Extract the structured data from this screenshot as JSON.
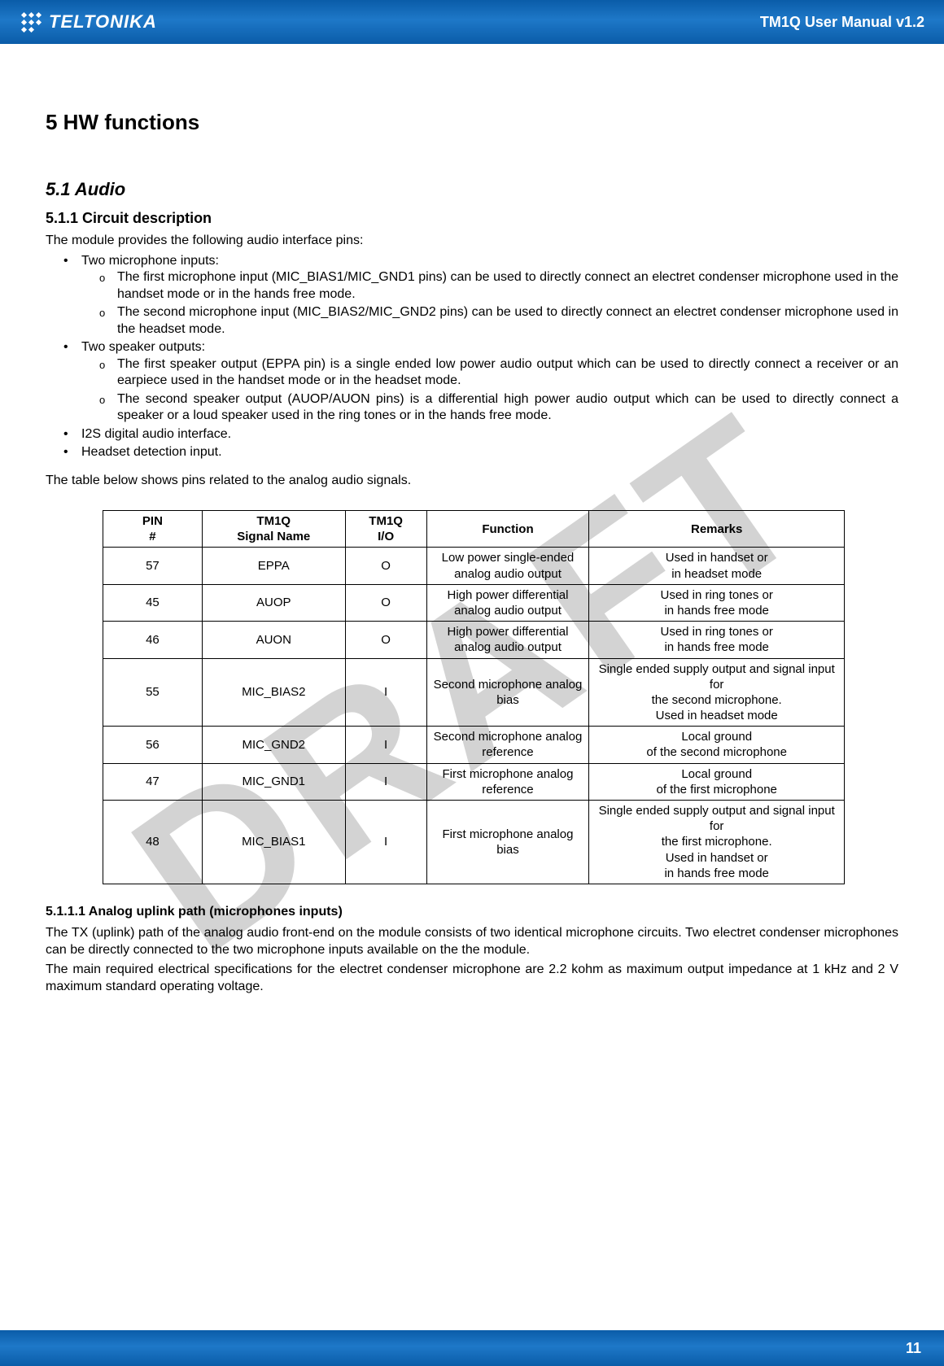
{
  "header": {
    "brand": "TELTONIKA",
    "doc_title": "TM1Q User Manual v1.2",
    "brand_color": "#0a5ca8",
    "text_color": "#ffffff"
  },
  "watermark": "DRAFT",
  "section": {
    "h1": "5   HW functions",
    "h2": "5.1   Audio",
    "h3": "5.1.1   Circuit description",
    "intro": "The module provides the following audio interface pins:",
    "b1": "Two microphone inputs:",
    "b1a": "The first microphone input (MIC_BIAS1/MIC_GND1 pins) can be used to directly connect an electret condenser microphone used in the handset mode or in the hands free mode.",
    "b1b": "The second microphone input (MIC_BIAS2/MIC_GND2 pins) can be used to directly connect an electret condenser microphone used in the headset mode.",
    "b2": "Two speaker outputs:",
    "b2a": "The first speaker output (EPPA pin) is a single ended low power audio output which can be used to directly connect a receiver or an earpiece used in the handset mode or in the headset mode.",
    "b2b": "The second speaker output (AUOP/AUON pins) is a differential high power audio output which can be used to directly connect a speaker or a loud speaker used in the ring tones or in the hands free mode.",
    "b3": "I2S digital audio interface.",
    "b4": "Headset detection input.",
    "table_intro": "The table below shows pins related to the analog audio signals.",
    "h4": "5.1.1.1    Analog uplink path (microphones inputs)",
    "p_after1": "The TX (uplink) path of the analog audio front-end on the module consists of two identical microphone circuits. Two electret condenser microphones can be directly connected to the two microphone inputs available on the the module.",
    "p_after2": "The main required electrical specifications for the electret condenser microphone are 2.2 kohm as maximum output impedance at 1 kHz and 2 V maximum standard operating voltage."
  },
  "table": {
    "headers": {
      "pin": "PIN\n#",
      "name": "TM1Q\nSignal Name",
      "io": "TM1Q\nI/O",
      "func": "Function",
      "rem": "Remarks"
    },
    "rows": [
      {
        "pin": "57",
        "name": "EPPA",
        "io": "O",
        "func": "Low power single-ended analog audio output",
        "rem": "Used in handset or\nin headset mode"
      },
      {
        "pin": "45",
        "name": "AUOP",
        "io": "O",
        "func": "High power differential analog audio output",
        "rem": "Used in ring tones or\nin hands free mode"
      },
      {
        "pin": "46",
        "name": "AUON",
        "io": "O",
        "func": "High power differential analog audio output",
        "rem": "Used in ring tones or\nin hands free mode"
      },
      {
        "pin": "55",
        "name": "MIC_BIAS2",
        "io": "I",
        "func": "Second microphone analog bias",
        "rem": "Single ended supply output and signal input for\nthe second microphone.\nUsed in headset mode"
      },
      {
        "pin": "56",
        "name": "MIC_GND2",
        "io": "I",
        "func": "Second microphone analog reference",
        "rem": "Local ground\nof the second microphone"
      },
      {
        "pin": "47",
        "name": "MIC_GND1",
        "io": "I",
        "func": "First microphone analog reference",
        "rem": "Local ground\nof the first microphone"
      },
      {
        "pin": "48",
        "name": "MIC_BIAS1",
        "io": "I",
        "func": "First microphone analog bias",
        "rem": "Single ended supply output and signal input for\nthe first microphone.\nUsed in handset or\nin hands free mode"
      }
    ]
  },
  "footer": {
    "page": "11"
  }
}
